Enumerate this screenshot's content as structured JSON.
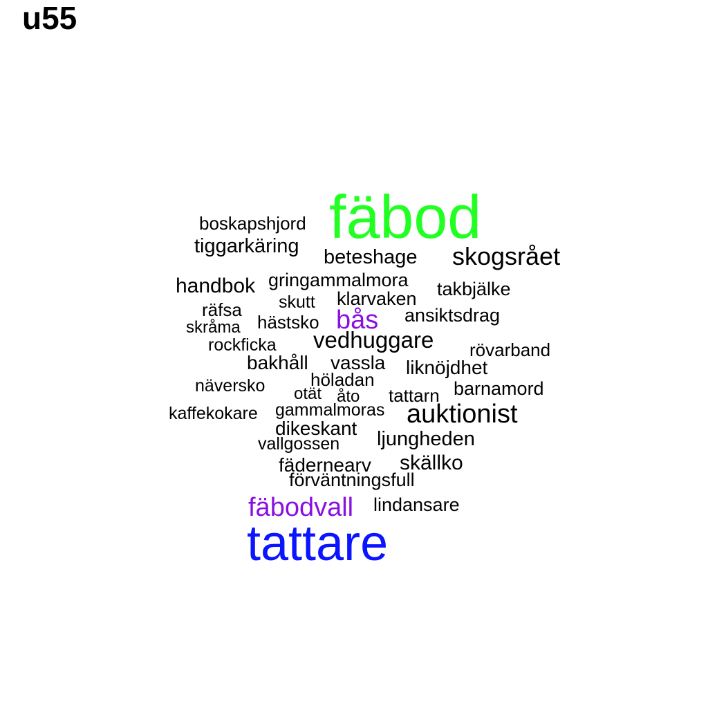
{
  "title": "u55",
  "palette": {
    "default": "#000000",
    "green": "#22ff22",
    "purple": "#8a10e0",
    "blue": "#0a14ff"
  },
  "words": [
    {
      "text": "fäbod",
      "color": "#22ff22"
    },
    {
      "text": "boskapshjord",
      "color": "#000000"
    },
    {
      "text": "tiggarkäring",
      "color": "#000000"
    },
    {
      "text": "beteshage",
      "color": "#000000"
    },
    {
      "text": "skogsrået",
      "color": "#000000"
    },
    {
      "text": "handbok",
      "color": "#000000"
    },
    {
      "text": "gringammalmora",
      "color": "#000000"
    },
    {
      "text": "takbjälke",
      "color": "#000000"
    },
    {
      "text": "räfsa",
      "color": "#000000"
    },
    {
      "text": "skutt",
      "color": "#000000"
    },
    {
      "text": "klarvaken",
      "color": "#000000"
    },
    {
      "text": "skråma",
      "color": "#000000"
    },
    {
      "text": "hästsko",
      "color": "#000000"
    },
    {
      "text": "bås",
      "color": "#8a10e0"
    },
    {
      "text": "ansiktsdrag",
      "color": "#000000"
    },
    {
      "text": "rockficka",
      "color": "#000000"
    },
    {
      "text": "vedhuggare",
      "color": "#000000"
    },
    {
      "text": "rövarband",
      "color": "#000000"
    },
    {
      "text": "bakhåll",
      "color": "#000000"
    },
    {
      "text": "vassla",
      "color": "#000000"
    },
    {
      "text": "liknöjdhet",
      "color": "#000000"
    },
    {
      "text": "höladan",
      "color": "#000000"
    },
    {
      "text": "näversko",
      "color": "#000000"
    },
    {
      "text": "barnamord",
      "color": "#000000"
    },
    {
      "text": "otät",
      "color": "#000000"
    },
    {
      "text": "åto",
      "color": "#000000"
    },
    {
      "text": "tattarn",
      "color": "#000000"
    },
    {
      "text": "kaffekokare",
      "color": "#000000"
    },
    {
      "text": "gammalmoras",
      "color": "#000000"
    },
    {
      "text": "auktionist",
      "color": "#000000"
    },
    {
      "text": "dikeskant",
      "color": "#000000"
    },
    {
      "text": "ljungheden",
      "color": "#000000"
    },
    {
      "text": "vallgossen",
      "color": "#000000"
    },
    {
      "text": "skällko",
      "color": "#000000"
    },
    {
      "text": "fädernearv",
      "color": "#000000"
    },
    {
      "text": "förväntningsfull",
      "color": "#000000"
    },
    {
      "text": "lindansare",
      "color": "#000000"
    },
    {
      "text": "fäbodvall",
      "color": "#8a10e0"
    },
    {
      "text": "tattare",
      "color": "#0a14ff"
    }
  ]
}
